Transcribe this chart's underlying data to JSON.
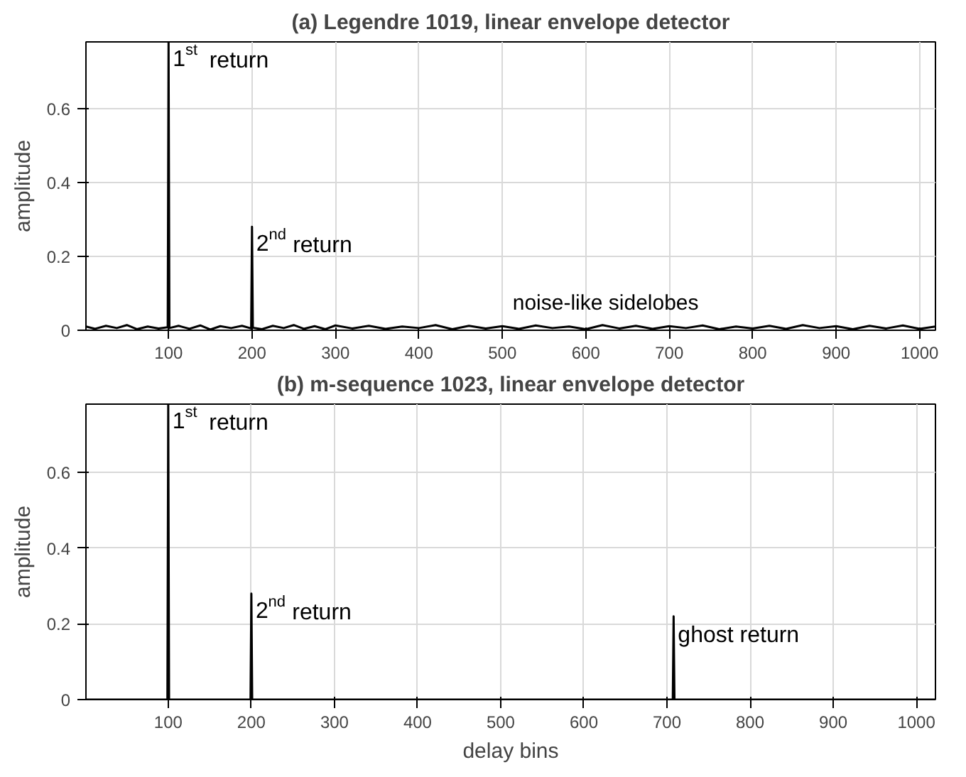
{
  "chart_data": [
    {
      "type": "line",
      "title": "(a) Legendre 1019, linear envelope detector",
      "ylabel": "amplitude",
      "xlim": [
        1,
        1019
      ],
      "ylim": [
        0,
        0.78
      ],
      "xticks": [
        100,
        200,
        300,
        400,
        500,
        600,
        700,
        800,
        900,
        1000
      ],
      "yticks": [
        0,
        0.2,
        0.4,
        0.6
      ],
      "grid": true,
      "series": [
        {
          "color": "#000000",
          "x": [
            1,
            12,
            25,
            38,
            50,
            62,
            75,
            88,
            99,
            100,
            101,
            112,
            125,
            138,
            150,
            162,
            175,
            188,
            199,
            200,
            201,
            212,
            225,
            238,
            250,
            262,
            275,
            288,
            300,
            320,
            340,
            360,
            380,
            400,
            420,
            440,
            460,
            480,
            500,
            520,
            540,
            560,
            580,
            600,
            620,
            640,
            660,
            680,
            700,
            720,
            740,
            760,
            780,
            800,
            820,
            840,
            860,
            880,
            900,
            920,
            940,
            960,
            980,
            1000,
            1019
          ],
          "values": [
            0.01,
            0.004,
            0.012,
            0.006,
            0.014,
            0.003,
            0.01,
            0.005,
            0.008,
            0.78,
            0.006,
            0.012,
            0.004,
            0.013,
            0.002,
            0.011,
            0.006,
            0.012,
            0.005,
            0.28,
            0.007,
            0.003,
            0.012,
            0.006,
            0.014,
            0.004,
            0.011,
            0.003,
            0.013,
            0.005,
            0.012,
            0.004,
            0.01,
            0.006,
            0.014,
            0.003,
            0.012,
            0.005,
            0.011,
            0.004,
            0.013,
            0.006,
            0.01,
            0.003,
            0.014,
            0.005,
            0.012,
            0.004,
            0.011,
            0.006,
            0.013,
            0.003,
            0.01,
            0.005,
            0.012,
            0.004,
            0.014,
            0.006,
            0.011,
            0.003,
            0.012,
            0.005,
            0.013,
            0.004,
            0.01
          ]
        }
      ],
      "annotations": [
        {
          "text": "1$^{st}$ return",
          "x": 100,
          "y": 0.78
        },
        {
          "text": "2$^{nd}$ return",
          "x": 200,
          "y": 0.28
        },
        {
          "text": "noise-like sidelobes",
          "x": 640,
          "y": 0.014
        }
      ]
    },
    {
      "type": "line",
      "title": "(b) m-sequence 1023, linear envelope detector",
      "xlabel": "delay bins",
      "ylabel": "amplitude",
      "xlim": [
        1,
        1023
      ],
      "ylim": [
        0,
        0.78
      ],
      "xticks": [
        100,
        200,
        300,
        400,
        500,
        600,
        700,
        800,
        900,
        1000
      ],
      "yticks": [
        0,
        0.2,
        0.4,
        0.6
      ],
      "grid": true,
      "series": [
        {
          "color": "#000000",
          "x": [
            1,
            99,
            100,
            101,
            199,
            200,
            201,
            707,
            708,
            709,
            1023
          ],
          "values": [
            0,
            0,
            0.78,
            0,
            0,
            0.28,
            0,
            0,
            0.22,
            0,
            0
          ]
        }
      ],
      "annotations": [
        {
          "text": "1$^{st}$ return",
          "x": 100,
          "y": 0.78
        },
        {
          "text": "2$^{nd}$ return",
          "x": 200,
          "y": 0.28
        },
        {
          "text": "ghost return",
          "x": 708,
          "y": 0.22
        }
      ]
    }
  ]
}
